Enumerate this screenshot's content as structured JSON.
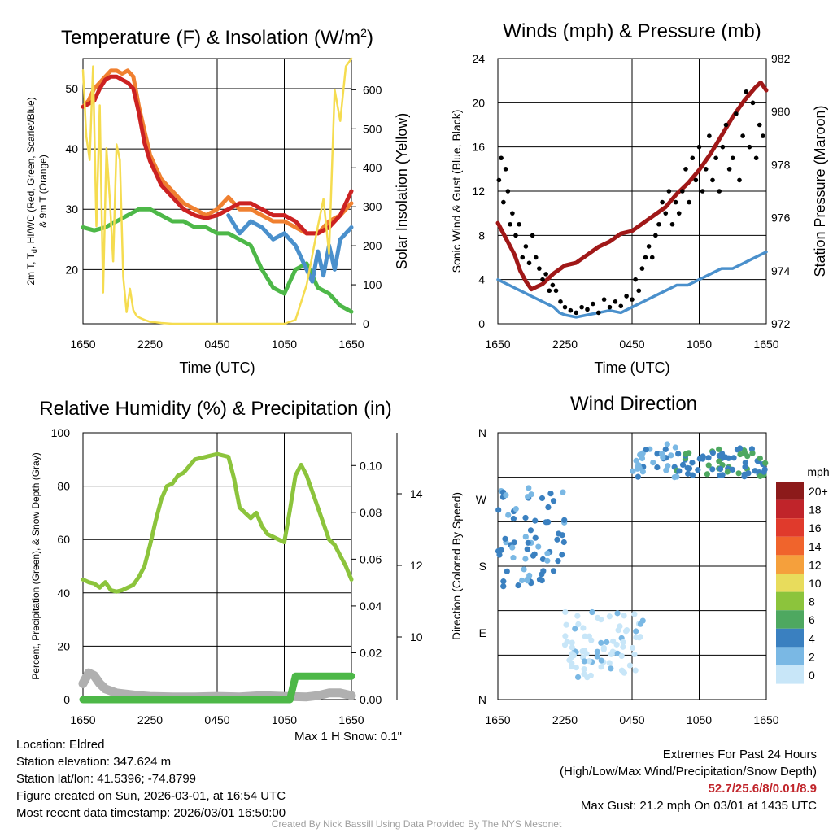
{
  "chart_data": [
    {
      "id": "temperature",
      "type": "line",
      "title": "Temperature (F) & Insolation (W/m2)",
      "title_main": "Temperature (F) & Insolation (W/m",
      "title_sup": "2",
      "title_close": ")",
      "xlabel": "Time (UTC)",
      "ylabel_line1": "2m T, T",
      "ylabel_sub": "d",
      "ylabel_line1b": ", HI/WC (Red, Green, Scarlet/Blue)",
      "ylabel_line2": "& 9m T (Orange)",
      "y2label": "Solar Insolation (Yellow)",
      "xticks": [
        "1650",
        "2250",
        "0450",
        "1050",
        "1650"
      ],
      "ylim": [
        11,
        55
      ],
      "yticks": [
        "20",
        "30",
        "40",
        "50"
      ],
      "y2lim": [
        0,
        680
      ],
      "y2ticks": [
        "0",
        "100",
        "200",
        "300",
        "400",
        "500",
        "600"
      ],
      "x_hours": [
        0,
        24
      ],
      "series": [
        {
          "name": "9m T",
          "color": "#f08030",
          "x": [
            0,
            0.5,
            1,
            2,
            2.5,
            3,
            3.5,
            4,
            4.5,
            5,
            6,
            7,
            8,
            9,
            10,
            11,
            12,
            12.5,
            13,
            14,
            15,
            16,
            17,
            18,
            19,
            20,
            21,
            22,
            23,
            24
          ],
          "values": [
            47,
            48,
            50,
            52,
            53,
            53,
            52.5,
            53,
            52,
            47,
            39,
            35,
            33,
            31,
            30,
            29,
            30,
            31,
            32,
            30,
            30,
            29,
            28,
            28,
            27,
            26,
            26,
            28,
            29,
            31
          ]
        },
        {
          "name": "2m T",
          "color": "#cc2222",
          "x": [
            0,
            0.5,
            1,
            1.5,
            2,
            2.5,
            3,
            3.5,
            4,
            4.5,
            5,
            5.5,
            6,
            7,
            8,
            9,
            10,
            11,
            12,
            13,
            14,
            15,
            16,
            17,
            18,
            19,
            20,
            21,
            22,
            23,
            24
          ],
          "values": [
            47,
            47.5,
            48,
            50,
            51.5,
            52,
            52,
            51.5,
            51,
            50,
            46,
            41,
            38,
            34,
            32,
            30,
            29,
            28.5,
            29,
            30,
            31,
            31,
            30,
            29,
            29,
            28,
            26,
            26,
            27,
            29,
            33
          ]
        },
        {
          "name": "Td",
          "color": "#4db848",
          "x": [
            0,
            1,
            2,
            3,
            4,
            5,
            6,
            7,
            8,
            9,
            10,
            11,
            12,
            13,
            14,
            15,
            16,
            17,
            18,
            19,
            20,
            21,
            22,
            23,
            24
          ],
          "values": [
            27,
            26.5,
            27,
            28,
            29,
            30,
            30,
            29,
            28,
            28,
            27,
            27,
            26,
            26,
            25,
            24,
            20,
            17,
            16,
            20,
            21,
            17,
            16,
            14,
            13
          ]
        },
        {
          "name": "HI/WC",
          "color": "#4a90cc",
          "x": [
            13,
            14,
            15,
            16,
            17,
            18,
            19,
            20,
            20.5,
            21,
            21.5,
            22,
            22.5,
            23,
            24
          ],
          "values": [
            29,
            26,
            28,
            27,
            25,
            26,
            24,
            20,
            18,
            23,
            19,
            24,
            20,
            25,
            27
          ]
        },
        {
          "name": "Solar Insolation",
          "axis": "y2",
          "color": "#f5dc50",
          "x": [
            0,
            0.3,
            0.6,
            0.9,
            1.2,
            1.5,
            1.8,
            2.1,
            2.4,
            2.7,
            3.0,
            3.3,
            3.6,
            3.9,
            4.2,
            4.5,
            4.8,
            5.1,
            5.5,
            6,
            7,
            8,
            10,
            12,
            14,
            16,
            18,
            19,
            20,
            21,
            21.5,
            22,
            22.5,
            23,
            23.5,
            24
          ],
          "values": [
            650,
            480,
            420,
            660,
            250,
            560,
            80,
            450,
            320,
            160,
            460,
            420,
            120,
            30,
            90,
            35,
            20,
            15,
            10,
            5,
            2,
            0,
            0,
            0,
            0,
            0,
            0,
            10,
            100,
            250,
            320,
            180,
            600,
            520,
            660,
            680
          ]
        }
      ]
    },
    {
      "id": "winds",
      "type": "line",
      "title": "Winds (mph) & Pressure (mb)",
      "xlabel": "Time (UTC)",
      "ylabel": "Sonic Wind & Gust (Blue, Black)",
      "y2label": "Station Pressure (Maroon)",
      "xticks": [
        "1650",
        "2250",
        "0450",
        "1050",
        "1650"
      ],
      "ylim": [
        0,
        24
      ],
      "yticks": [
        "0",
        "4",
        "8",
        "12",
        "16",
        "20",
        "24"
      ],
      "y2lim": [
        972,
        982
      ],
      "y2ticks": [
        "972",
        "974",
        "976",
        "978",
        "980",
        "982"
      ],
      "series": [
        {
          "name": "Station Pressure",
          "axis": "y2",
          "color": "#a01818",
          "x": [
            0,
            0.5,
            1,
            1.5,
            2,
            2.5,
            3,
            3.5,
            4,
            4.5,
            5,
            6,
            7,
            8,
            9,
            10,
            11,
            12,
            13,
            14,
            15,
            16,
            17,
            18,
            19,
            20,
            21,
            22,
            23,
            23.5,
            24
          ],
          "values": [
            975.8,
            975.4,
            975.0,
            974.6,
            974.0,
            973.6,
            973.3,
            973.4,
            973.5,
            973.7,
            973.9,
            974.2,
            974.3,
            974.6,
            974.9,
            975.1,
            975.4,
            975.5,
            975.8,
            976.1,
            976.4,
            976.9,
            977.3,
            977.8,
            978.4,
            979.1,
            979.8,
            980.4,
            980.9,
            981.1,
            980.8
          ]
        },
        {
          "name": "Sonic Wind",
          "color": "#4a90cc",
          "x": [
            0,
            1,
            2,
            3,
            4,
            5,
            5.5,
            6,
            7,
            8,
            9,
            10,
            11,
            12,
            13,
            14,
            15,
            16,
            17,
            18,
            19,
            20,
            21,
            22,
            23,
            24
          ],
          "values": [
            4,
            3.5,
            3,
            2.5,
            2,
            1.5,
            1,
            0.8,
            0.6,
            0.8,
            1,
            1.2,
            1.0,
            1.5,
            2,
            2.5,
            3,
            3.5,
            3.5,
            4,
            4.5,
            5,
            5,
            5.5,
            6,
            6.5
          ]
        },
        {
          "name": "Gust",
          "color": "#000000",
          "style": "dots",
          "x": [
            0.1,
            0.3,
            0.5,
            0.7,
            0.9,
            1.1,
            1.3,
            1.6,
            1.9,
            2.2,
            2.5,
            2.8,
            3.1,
            3.4,
            3.7,
            4.0,
            4.3,
            4.6,
            4.9,
            5.2,
            5.6,
            6,
            6.5,
            7,
            7.5,
            8,
            8.5,
            9,
            9.5,
            10,
            10.5,
            11,
            11.5,
            12,
            12.3,
            12.6,
            12.9,
            13.2,
            13.5,
            13.8,
            14.1,
            14.4,
            14.7,
            15,
            15.3,
            15.6,
            15.9,
            16.2,
            16.5,
            16.8,
            17.1,
            17.4,
            17.7,
            18,
            18.3,
            18.6,
            18.9,
            19.2,
            19.5,
            19.8,
            20.1,
            20.4,
            20.7,
            21,
            21.3,
            21.6,
            21.9,
            22.2,
            22.5,
            22.8,
            23.1,
            23.4,
            23.7
          ],
          "values": [
            13,
            15,
            11,
            14,
            12,
            9,
            10,
            8,
            9,
            6,
            7,
            5.5,
            8,
            6,
            5,
            4,
            4.5,
            3,
            3.5,
            3,
            2,
            1.5,
            1.2,
            1,
            1.5,
            1.3,
            1.8,
            1,
            2.2,
            1.5,
            2,
            1.6,
            2.5,
            2.2,
            4,
            3,
            5,
            6,
            7,
            6,
            8,
            9,
            11,
            10,
            12,
            9,
            11,
            10,
            12,
            14,
            11,
            15,
            13,
            16,
            12,
            14,
            17,
            13,
            15,
            12,
            16,
            18,
            14,
            15,
            19,
            13,
            17,
            21,
            16,
            20,
            15,
            18,
            17
          ]
        }
      ]
    },
    {
      "id": "humidity",
      "type": "line",
      "title": "Relative Humidity (%) & Precipitation (in)",
      "ylabel": "Percent, Precipitation (Green), & Snow Depth (Gray)",
      "xticks": [
        "1650",
        "2250",
        "0450",
        "1050",
        "1650"
      ],
      "ylim": [
        0,
        100
      ],
      "yticks": [
        "0",
        "20",
        "40",
        "60",
        "80",
        "100"
      ],
      "y2lim": [
        0,
        0.114
      ],
      "y2ticks": [
        "0.00",
        "0.02",
        "0.04",
        "0.06",
        "0.08",
        "0.10"
      ],
      "y3ticks": [
        "10",
        "12",
        "14"
      ],
      "series": [
        {
          "name": "Relative Humidity",
          "color": "#8cc43c",
          "x": [
            0,
            0.5,
            1,
            1.5,
            2,
            2.5,
            3,
            3.5,
            4,
            4.5,
            5,
            5.5,
            6,
            6.5,
            7,
            7.5,
            8,
            8.5,
            9,
            10,
            11,
            12,
            13,
            13.5,
            14,
            14.5,
            15,
            15.5,
            16,
            16.5,
            17,
            17.5,
            18,
            18.5,
            19,
            19.5,
            20,
            20.5,
            21,
            21.5,
            22,
            22.5,
            23,
            23.5,
            24
          ],
          "values": [
            45,
            44,
            43.5,
            42,
            44,
            41,
            40.5,
            41,
            42,
            43,
            46,
            50,
            58,
            67,
            75,
            80,
            81,
            84,
            85,
            90,
            91,
            92,
            91,
            83,
            72,
            70,
            68,
            70,
            65,
            62,
            61,
            60,
            59,
            71,
            84,
            88,
            84,
            78,
            72,
            66,
            60,
            58,
            54,
            50,
            45
          ]
        },
        {
          "name": "Snow Depth",
          "color": "#b0b0b0",
          "x": [
            0,
            0.5,
            1,
            1.5,
            2,
            3,
            4,
            5,
            6,
            8,
            10,
            12,
            14,
            16,
            18,
            20,
            21,
            22,
            23,
            24
          ],
          "values": [
            6,
            10,
            9,
            6,
            4,
            2.5,
            2,
            1.5,
            1.2,
            1,
            1,
            1.2,
            1,
            1.5,
            1.2,
            1,
            1.5,
            2.5,
            2.5,
            1.5
          ]
        },
        {
          "name": "Precipitation",
          "color": "#4db848",
          "x": [
            0,
            18.5,
            19,
            24
          ],
          "values": [
            0,
            0,
            0.01,
            0.01
          ]
        }
      ]
    },
    {
      "id": "direction",
      "type": "scatter",
      "title": "Wind Direction",
      "ylabel": "Direction (Colored By Speed)",
      "xticks": [
        "1650",
        "2250",
        "0450",
        "1050",
        "1650"
      ],
      "yticks": [
        "N",
        "E",
        "S",
        "W",
        "N"
      ],
      "ylim": [
        0,
        360
      ],
      "colorbar_unit": "mph",
      "colorbar_labels": [
        "20+",
        "18",
        "16",
        "14",
        "12",
        "10",
        "8",
        "6",
        "4",
        "2",
        "0"
      ],
      "colorbar_colors": [
        "#8c1a1a",
        "#c0242a",
        "#e03a2c",
        "#f0642c",
        "#f5a03c",
        "#e8dc5c",
        "#8cc43c",
        "#4ea860",
        "#3a80c0",
        "#7ab8e4",
        "#c8e6f8"
      ],
      "clusters": [
        {
          "x_range": [
            0,
            6
          ],
          "y_range": [
            150,
            290
          ],
          "n": 70,
          "color": "#3a80c0",
          "alt_color": "#7ab8e4"
        },
        {
          "x_range": [
            6,
            13
          ],
          "y_range": [
            30,
            120
          ],
          "n": 80,
          "color": "#c8e6f8",
          "alt_color": "#7ab8e4"
        },
        {
          "x_range": [
            12,
            16
          ],
          "y_range": [
            300,
            345
          ],
          "n": 30,
          "color": "#7ab8e4",
          "alt_color": "#3a80c0"
        },
        {
          "x_range": [
            16,
            24
          ],
          "y_range": [
            300,
            340
          ],
          "n": 70,
          "color": "#3a80c0",
          "alt_color": "#4ea860"
        }
      ]
    }
  ],
  "snow_note": "Max 1 H Snow: 0.1\"",
  "info": {
    "location": "Location: Eldred",
    "elevation": "Station elevation: 347.624 m",
    "latlon": "Station lat/lon: 41.5396; -74.8799",
    "created": "Figure created on Sun, 2026-03-01, at 16:54 UTC",
    "recent": "Most recent data timestamp: 2026/03/01 16:50:00"
  },
  "extremes": {
    "title": "Extremes For Past 24 Hours",
    "legend": "(High/Low/Max Wind/Precipitation/Snow Depth)",
    "values": "52.7/25.6/8/0.01/8.9",
    "gust": "Max Gust: 21.2 mph On 03/01 at 1435 UTC"
  },
  "credit": "Created By Nick Bassill Using Data Provided By The NYS Mesonet"
}
